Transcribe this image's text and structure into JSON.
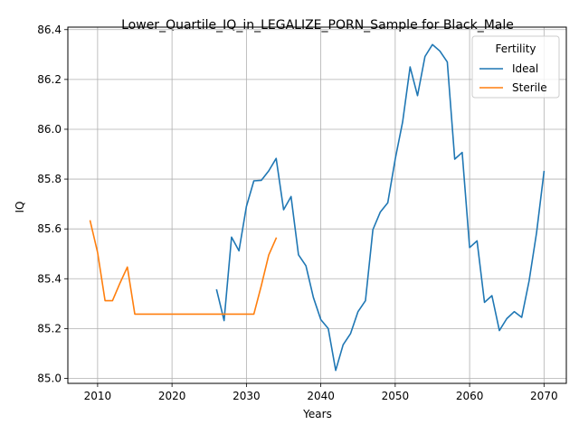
{
  "chart_data": {
    "type": "line",
    "title": "Lower_Quartile_IQ_in_LEGALIZE_PORN_Sample for Black_Male",
    "xlabel": "Years",
    "ylabel": "IQ",
    "xlim": [
      2006,
      2073
    ],
    "ylim": [
      84.98,
      86.41
    ],
    "xticks": [
      2010,
      2020,
      2030,
      2040,
      2050,
      2060,
      2070
    ],
    "yticks": [
      "85.0",
      "85.2",
      "85.4",
      "85.6",
      "85.8",
      "86.0",
      "86.2",
      "86.4"
    ],
    "grid": true,
    "legend": {
      "title": "Fertility",
      "placement": "top-right"
    },
    "series": [
      {
        "name": "Ideal",
        "color": "#1f77b4",
        "x": [
          2026,
          2027,
          2028,
          2029,
          2030,
          2031,
          2032,
          2033,
          2034,
          2035,
          2036,
          2037,
          2038,
          2039,
          2040,
          2041,
          2042,
          2043,
          2044,
          2045,
          2046,
          2047,
          2048,
          2049,
          2050,
          2051,
          2052,
          2053,
          2054,
          2055,
          2056,
          2057,
          2058,
          2059,
          2060,
          2061,
          2062,
          2063,
          2064,
          2065,
          2066,
          2067,
          2068,
          2069,
          2070
        ],
        "y": [
          85.355,
          85.232,
          85.567,
          85.512,
          85.69,
          85.793,
          85.795,
          85.833,
          85.883,
          85.677,
          85.73,
          85.496,
          85.452,
          85.325,
          85.236,
          85.2,
          85.032,
          85.135,
          85.18,
          85.268,
          85.312,
          85.597,
          85.668,
          85.705,
          85.88,
          86.03,
          86.25,
          86.135,
          86.292,
          86.34,
          86.314,
          86.27,
          85.88,
          85.907,
          85.525,
          85.552,
          85.305,
          85.332,
          85.192,
          85.24,
          85.268,
          85.245,
          85.392,
          85.585,
          85.83
        ]
      },
      {
        "name": "Sterile",
        "color": "#ff7f0e",
        "x": [
          2009,
          2010,
          2011,
          2012,
          2013,
          2014,
          2015,
          2016,
          2017,
          2018,
          2019,
          2020,
          2021,
          2022,
          2023,
          2024,
          2025,
          2026,
          2027,
          2028,
          2029,
          2030,
          2031,
          2032,
          2033,
          2034
        ],
        "y": [
          85.632,
          85.505,
          85.312,
          85.312,
          85.382,
          85.447,
          85.258,
          85.258,
          85.258,
          85.258,
          85.258,
          85.258,
          85.258,
          85.258,
          85.258,
          85.258,
          85.258,
          85.258,
          85.258,
          85.258,
          85.258,
          85.258,
          85.258,
          85.372,
          85.495,
          85.563
        ]
      }
    ]
  }
}
